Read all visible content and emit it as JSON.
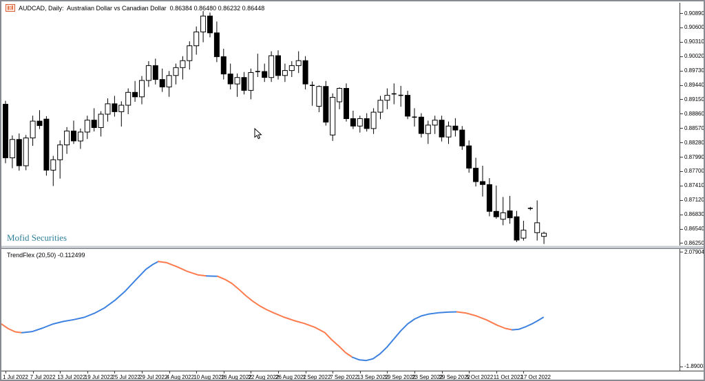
{
  "header": {
    "title": "AUDCAD, Daily:  Australian Dollar vs Canadian Dollar  0.86384 0.86480 0.86232 0.86448",
    "icon": "candlestick-chart-icon"
  },
  "watermark": "Mofid Securities",
  "indicator_panel": {
    "label": "TrendFlex (20,50) -0.112499",
    "max_label": "2.079048",
    "min_label": "-1.890034"
  },
  "colors": {
    "bull_body": "#ffffff",
    "bear_body": "#000000",
    "outline": "#000000",
    "indicator_up": "#3d82e0",
    "indicator_down": "#fd7a4d",
    "watermark": "#2e8098",
    "axis_line": "#3c3c3c"
  },
  "chart_data": {
    "type": "candlestick",
    "symbol": "AUDCAD",
    "timeframe": "Daily",
    "description": "Australian Dollar vs Canadian Dollar",
    "last_ohlc": {
      "open": "0.86384",
      "high": "0.86480",
      "low": "0.86232",
      "close": "0.86448"
    },
    "price_axis": {
      "labels": [
        "0.90890",
        "0.90600",
        "0.90310",
        "0.90020",
        "0.89730",
        "0.89440",
        "0.89150",
        "0.88860",
        "0.88570",
        "0.88280",
        "0.87990",
        "0.87700",
        "0.87410",
        "0.87120",
        "0.86830",
        "0.86540",
        "0.86250"
      ]
    },
    "time_axis": {
      "labels": [
        "1 Jul 2022",
        "7 Jul 2022",
        "13 Jul 2022",
        "19 Jul 2022",
        "25 Jul 2022",
        "29 Jul 2022",
        "4 Aug 2022",
        "10 Aug 2022",
        "16 Aug 2022",
        "22 Aug 2022",
        "26 Aug 2022",
        "1 Sep 2022",
        "7 Sep 2022",
        "13 Sep 2022",
        "19 Sep 2022",
        "23 Sep 2022",
        "29 Sep 2022",
        "5 Oct 2022",
        "11 Oct 2022",
        "17 Oct 2022"
      ]
    },
    "candles": [
      [
        0.8905,
        0.8912,
        0.8786,
        0.8797
      ],
      [
        0.8797,
        0.8842,
        0.8776,
        0.8834
      ],
      [
        0.8834,
        0.8846,
        0.8771,
        0.8781
      ],
      [
        0.8781,
        0.8843,
        0.8772,
        0.8837
      ],
      [
        0.8837,
        0.8882,
        0.8821,
        0.8871
      ],
      [
        0.8871,
        0.8893,
        0.8855,
        0.8862
      ],
      [
        0.8875,
        0.8881,
        0.8761,
        0.8772
      ],
      [
        0.8772,
        0.8801,
        0.874,
        0.8793
      ],
      [
        0.8793,
        0.8832,
        0.8755,
        0.8823
      ],
      [
        0.8823,
        0.8859,
        0.8805,
        0.8851
      ],
      [
        0.8851,
        0.8872,
        0.8825,
        0.8831
      ],
      [
        0.8831,
        0.8856,
        0.8815,
        0.8849
      ],
      [
        0.8849,
        0.8882,
        0.8835,
        0.8873
      ],
      [
        0.8873,
        0.8897,
        0.885,
        0.8858
      ],
      [
        0.8858,
        0.8891,
        0.884,
        0.8885
      ],
      [
        0.8885,
        0.8917,
        0.887,
        0.8906
      ],
      [
        0.8906,
        0.8922,
        0.888,
        0.889
      ],
      [
        0.889,
        0.8911,
        0.886,
        0.8903
      ],
      [
        0.8903,
        0.8937,
        0.8885,
        0.8929
      ],
      [
        0.8929,
        0.8952,
        0.891,
        0.892
      ],
      [
        0.892,
        0.8962,
        0.8905,
        0.8953
      ],
      [
        0.8953,
        0.8992,
        0.894,
        0.8983
      ],
      [
        0.8983,
        0.8997,
        0.8945,
        0.8955
      ],
      [
        0.8955,
        0.8977,
        0.893,
        0.894
      ],
      [
        0.894,
        0.8972,
        0.892,
        0.8963
      ],
      [
        0.8963,
        0.8987,
        0.8945,
        0.8979
      ],
      [
        0.8979,
        0.9002,
        0.8955,
        0.8993
      ],
      [
        0.8993,
        0.9032,
        0.8975,
        0.9023
      ],
      [
        0.9023,
        0.9062,
        0.9005,
        0.9051
      ],
      [
        0.9051,
        0.9093,
        0.903,
        0.9083
      ],
      [
        0.9083,
        0.909,
        0.904,
        0.9049
      ],
      [
        0.9049,
        0.9072,
        0.899,
        0.9001
      ],
      [
        0.9001,
        0.9017,
        0.8955,
        0.8966
      ],
      [
        0.8966,
        0.8987,
        0.8935,
        0.8946
      ],
      [
        0.8946,
        0.8967,
        0.892,
        0.8959
      ],
      [
        0.8959,
        0.897,
        0.8925,
        0.8933
      ],
      [
        0.8933,
        0.8977,
        0.8915,
        0.8969
      ],
      [
        0.8969,
        0.9007,
        0.896,
        0.8971
      ],
      [
        0.8971,
        0.8987,
        0.895,
        0.8959
      ],
      [
        0.8959,
        0.9012,
        0.895,
        0.9003
      ],
      [
        0.9003,
        0.9014,
        0.8955,
        0.8963
      ],
      [
        0.8963,
        0.8987,
        0.895,
        0.8973
      ],
      [
        0.8973,
        0.8992,
        0.896,
        0.8983
      ],
      [
        0.8983,
        0.9012,
        0.8968,
        0.8993
      ],
      [
        0.8993,
        0.9002,
        0.8935,
        0.8946
      ],
      [
        0.8946,
        0.8951,
        0.8902,
        0.8943
      ],
      [
        0.8901,
        0.8943,
        0.8889,
        0.8941
      ],
      [
        0.8941,
        0.8952,
        0.8862,
        0.8869
      ],
      [
        0.8843,
        0.8927,
        0.8831,
        0.8919
      ],
      [
        0.891,
        0.8939,
        0.8895,
        0.8937
      ],
      [
        0.8937,
        0.8947,
        0.887,
        0.8876
      ],
      [
        0.8876,
        0.8892,
        0.8855,
        0.8861
      ],
      [
        0.8861,
        0.8882,
        0.8848,
        0.8876
      ],
      [
        0.8876,
        0.8887,
        0.885,
        0.8856
      ],
      [
        0.8856,
        0.8897,
        0.8845,
        0.8889
      ],
      [
        0.8889,
        0.8922,
        0.8875,
        0.8913
      ],
      [
        0.8913,
        0.8937,
        0.8895,
        0.8923
      ],
      [
        0.8923,
        0.8947,
        0.8905,
        0.8926
      ],
      [
        0.8926,
        0.8942,
        0.89,
        0.8923
      ],
      [
        0.8923,
        0.8932,
        0.8875,
        0.8881
      ],
      [
        0.8881,
        0.8897,
        0.886,
        0.8879
      ],
      [
        0.8879,
        0.8887,
        0.8838,
        0.8846
      ],
      [
        0.8846,
        0.8872,
        0.8825,
        0.8863
      ],
      [
        0.8863,
        0.8882,
        0.8845,
        0.8873
      ],
      [
        0.8873,
        0.8882,
        0.883,
        0.8839
      ],
      [
        0.8839,
        0.887,
        0.8825,
        0.8861
      ],
      [
        0.8861,
        0.8877,
        0.884,
        0.8853
      ],
      [
        0.8853,
        0.8861,
        0.8813,
        0.8821
      ],
      [
        0.8821,
        0.8832,
        0.8767,
        0.8776
      ],
      [
        0.8776,
        0.8797,
        0.8739,
        0.8749
      ],
      [
        0.8749,
        0.8781,
        0.8719,
        0.8743
      ],
      [
        0.8743,
        0.8756,
        0.8679,
        0.8689
      ],
      [
        0.8689,
        0.8741,
        0.8674,
        0.8678
      ],
      [
        0.8673,
        0.8718,
        0.8661,
        0.8686
      ],
      [
        0.869,
        0.872,
        0.8664,
        0.8676
      ],
      [
        0.8678,
        0.869,
        0.8627,
        0.8631
      ],
      [
        0.8635,
        0.867,
        0.863,
        0.8651
      ],
      [
        0.8694,
        0.8698,
        0.8691,
        0.8695
      ],
      [
        0.8646,
        0.8711,
        0.863,
        0.8666
      ],
      [
        0.86384,
        0.8648,
        0.86232,
        0.86448
      ]
    ],
    "indicator": {
      "name": "TrendFlex",
      "params": "(20,50)",
      "current_value": "-0.112499",
      "max_tick": 2.079048,
      "min_tick": -1.890034,
      "points": [
        [
          0,
          -0.42,
          "o"
        ],
        [
          10,
          -0.58,
          "o"
        ],
        [
          20,
          -0.69,
          "o"
        ],
        [
          30,
          -0.72,
          "b"
        ],
        [
          45,
          -0.68,
          "b"
        ],
        [
          60,
          -0.56,
          "b"
        ],
        [
          75,
          -0.42,
          "b"
        ],
        [
          90,
          -0.33,
          "b"
        ],
        [
          105,
          -0.27,
          "b"
        ],
        [
          120,
          -0.19,
          "b"
        ],
        [
          135,
          -0.05,
          "b"
        ],
        [
          150,
          0.14,
          "b"
        ],
        [
          165,
          0.4,
          "b"
        ],
        [
          180,
          0.72,
          "b"
        ],
        [
          195,
          1.1,
          "b"
        ],
        [
          210,
          1.47,
          "b"
        ],
        [
          220,
          1.64,
          "b"
        ],
        [
          228,
          1.74,
          "o"
        ],
        [
          240,
          1.7,
          "o"
        ],
        [
          255,
          1.56,
          "o"
        ],
        [
          270,
          1.4,
          "o"
        ],
        [
          285,
          1.28,
          "o"
        ],
        [
          298,
          1.24,
          "b"
        ],
        [
          314,
          1.23,
          "o"
        ],
        [
          325,
          1.12,
          "o"
        ],
        [
          335,
          0.98,
          "o"
        ],
        [
          345,
          0.78,
          "o"
        ],
        [
          355,
          0.56,
          "o"
        ],
        [
          365,
          0.37,
          "o"
        ],
        [
          375,
          0.21,
          "o"
        ],
        [
          385,
          0.08,
          "o"
        ],
        [
          395,
          -0.03,
          "o"
        ],
        [
          410,
          -0.18,
          "o"
        ],
        [
          425,
          -0.3,
          "o"
        ],
        [
          440,
          -0.4,
          "o"
        ],
        [
          455,
          -0.53,
          "o"
        ],
        [
          470,
          -0.72,
          "o"
        ],
        [
          480,
          -0.97,
          "o"
        ],
        [
          490,
          -1.18,
          "o"
        ],
        [
          500,
          -1.41,
          "o"
        ],
        [
          510,
          -1.57,
          "b"
        ],
        [
          520,
          -1.66,
          "b"
        ],
        [
          530,
          -1.68,
          "b"
        ],
        [
          540,
          -1.62,
          "b"
        ],
        [
          550,
          -1.45,
          "b"
        ],
        [
          560,
          -1.22,
          "b"
        ],
        [
          570,
          -0.94,
          "b"
        ],
        [
          580,
          -0.66,
          "b"
        ],
        [
          590,
          -0.42,
          "b"
        ],
        [
          600,
          -0.25,
          "b"
        ],
        [
          610,
          -0.14,
          "b"
        ],
        [
          620,
          -0.08,
          "b"
        ],
        [
          635,
          -0.03,
          "b"
        ],
        [
          650,
          -0.005,
          "b"
        ],
        [
          662,
          0.0,
          "o"
        ],
        [
          675,
          -0.04,
          "o"
        ],
        [
          690,
          -0.14,
          "o"
        ],
        [
          705,
          -0.28,
          "o"
        ],
        [
          720,
          -0.46,
          "o"
        ],
        [
          732,
          -0.57,
          "o"
        ],
        [
          742,
          -0.62,
          "b"
        ],
        [
          752,
          -0.6,
          "b"
        ],
        [
          762,
          -0.51,
          "b"
        ],
        [
          772,
          -0.4,
          "b"
        ],
        [
          780,
          -0.29,
          "b"
        ],
        [
          787,
          -0.19,
          "b"
        ]
      ]
    }
  }
}
